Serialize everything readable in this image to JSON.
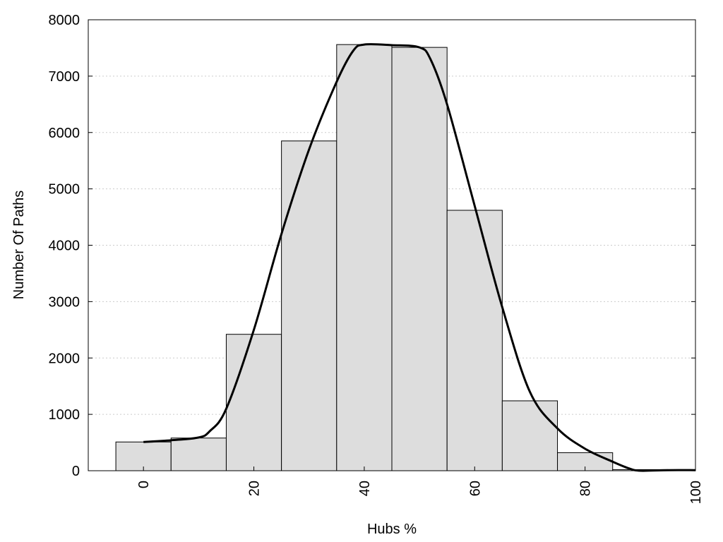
{
  "chart_data": {
    "type": "bar",
    "title": "",
    "xlabel": "Hubs %",
    "ylabel": "Number Of Paths",
    "xlim": [
      -10,
      100
    ],
    "ylim": [
      0,
      8000
    ],
    "bin_width": 10,
    "x_ticks": [
      0,
      20,
      40,
      60,
      80,
      100
    ],
    "y_ticks": [
      0,
      1000,
      2000,
      3000,
      4000,
      5000,
      6000,
      7000,
      8000
    ],
    "grid": "horizontal dotted",
    "bars": [
      {
        "x": 0,
        "value": 510
      },
      {
        "x": 10,
        "value": 580
      },
      {
        "x": 20,
        "value": 2420
      },
      {
        "x": 30,
        "value": 5850
      },
      {
        "x": 40,
        "value": 7560
      },
      {
        "x": 50,
        "value": 7510
      },
      {
        "x": 60,
        "value": 4620
      },
      {
        "x": 70,
        "value": 1240
      },
      {
        "x": 80,
        "value": 320
      },
      {
        "x": 90,
        "value": 20
      },
      {
        "x": 100,
        "value": 5
      }
    ],
    "curve": {
      "x": [
        0,
        5,
        10,
        12,
        15,
        20,
        25,
        30,
        35,
        38,
        40,
        45,
        50,
        52,
        55,
        60,
        65,
        70,
        75,
        80,
        85,
        88,
        90,
        95,
        100
      ],
      "y": [
        510,
        540,
        590,
        700,
        1100,
        2500,
        4200,
        5700,
        6900,
        7450,
        7560,
        7550,
        7510,
        7300,
        6500,
        4700,
        2900,
        1400,
        750,
        390,
        160,
        40,
        0,
        10,
        10
      ]
    },
    "colors": {
      "bar_fill": "#dddddd",
      "bar_stroke": "#000000",
      "curve": "#000000",
      "grid": "#cccccc"
    }
  }
}
